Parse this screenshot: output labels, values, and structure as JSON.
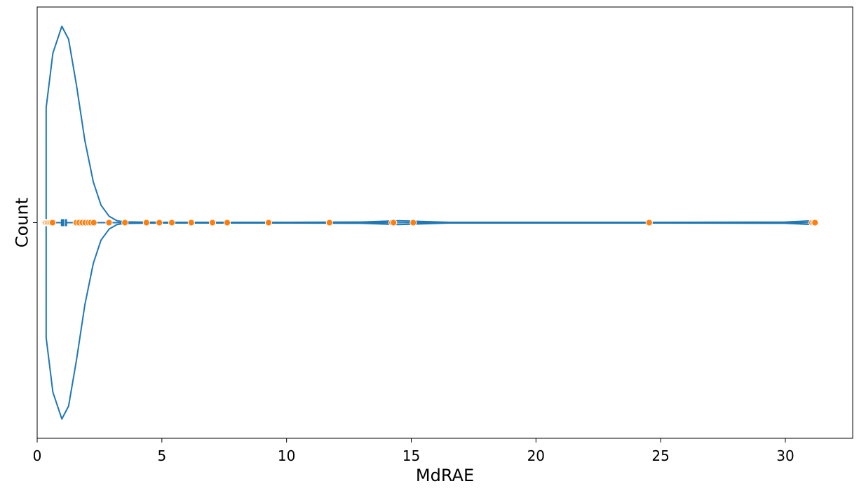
{
  "chart_data": {
    "type": "violin",
    "orientation": "horizontal",
    "xlabel": "MdRAE",
    "ylabel": "Count",
    "xlim": [
      0,
      32.7
    ],
    "x_ticks": [
      0,
      5,
      10,
      15,
      20,
      25,
      30
    ],
    "y_ticks": [
      ""
    ],
    "grid": false,
    "legend": "none",
    "colors": {
      "violin": "#1f77b4",
      "points": "#ff7f0e",
      "point_edge": "#ffffff",
      "axes": "#000000"
    },
    "violin_outline": {
      "x": [
        0.36,
        0.36,
        0.63,
        0.99,
        1.26,
        1.58,
        1.91,
        2.25,
        2.56,
        2.89,
        3.2,
        3.5,
        4.0,
        5.0,
        7.0,
        10.0,
        13.0,
        14.5,
        16.5,
        20.0,
        25.0,
        30.0,
        31.1
      ],
      "width": [
        0.585,
        0.585,
        0.863,
        1.0,
        0.934,
        0.697,
        0.42,
        0.208,
        0.089,
        0.032,
        0.01,
        0.004,
        0.003,
        0.002,
        0.002,
        0.002,
        0.003,
        0.01,
        0.002,
        0.002,
        0.002,
        0.003,
        0.01
      ]
    },
    "quartiles": {
      "q1": 0.95,
      "median": 1.1,
      "q3": 1.2
    },
    "whiskers": [
      0.36,
      31.1
    ],
    "points": [
      0.33,
      0.37,
      0.42,
      0.47,
      0.52,
      0.57,
      0.62,
      1.57,
      1.68,
      1.81,
      1.93,
      2.05,
      2.15,
      2.27,
      2.88,
      3.52,
      4.38,
      4.9,
      5.4,
      6.18,
      7.03,
      7.62,
      9.28,
      11.72,
      14.23,
      14.29,
      15.08,
      24.54,
      31.07,
      31.14,
      31.19
    ]
  }
}
